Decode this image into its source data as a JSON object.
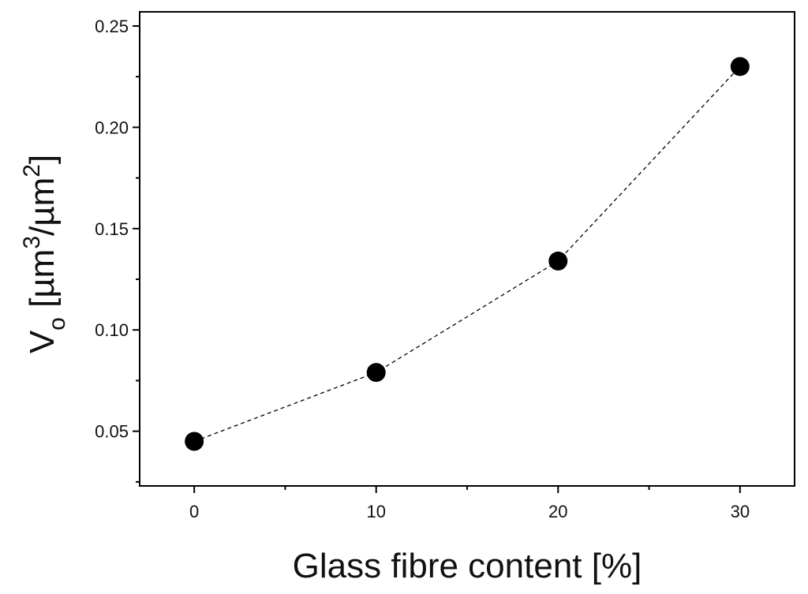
{
  "chart_data": {
    "type": "scatter",
    "xlabel": "Glass fibre content  [%]",
    "ylabel": {
      "symbol": "V",
      "subscript": "o",
      "unit_prefix": " [µm",
      "unit_exp1": "3",
      "unit_mid": "/µm",
      "unit_exp2": "2",
      "unit_suffix": "]"
    },
    "xlim": [
      -3,
      33
    ],
    "ylim": [
      0.023,
      0.257
    ],
    "x_ticks": [
      0,
      10,
      20,
      30
    ],
    "x_tick_labels": [
      "0",
      "10",
      "20",
      "30"
    ],
    "x_minor_ticks": [
      5,
      15,
      25
    ],
    "y_ticks": [
      0.05,
      0.1,
      0.15,
      0.2,
      0.25
    ],
    "y_tick_labels": [
      "0.05",
      "0.10",
      "0.15",
      "0.20",
      "0.25"
    ],
    "y_minor_ticks": [
      0.025,
      0.075,
      0.125,
      0.175,
      0.225
    ],
    "series": [
      {
        "x": [
          0,
          10,
          20,
          30
        ],
        "y": [
          0.045,
          0.079,
          0.134,
          0.23
        ],
        "marker": "filled-circle",
        "line": "dashed",
        "color": "#000000"
      }
    ],
    "grid": false
  }
}
